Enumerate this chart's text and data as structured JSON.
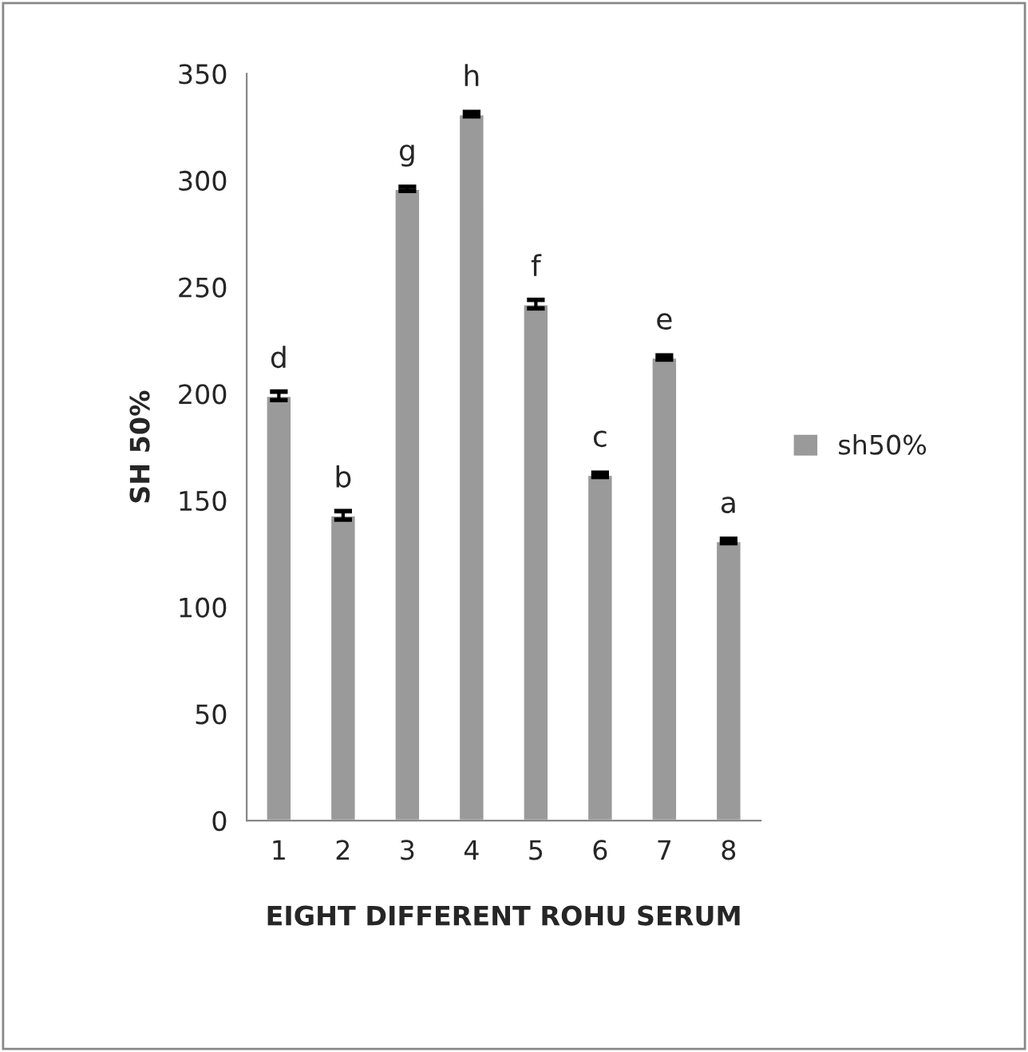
{
  "chart_data": {
    "type": "bar",
    "xlabel": "EIGHT DIFFERENT ROHU SERUM",
    "ylabel": "SH 50%",
    "categories": [
      "1",
      "2",
      "3",
      "4",
      "5",
      "6",
      "7",
      "8"
    ],
    "series": [
      {
        "name": "sh50%",
        "color": "#9a9a9a",
        "values": [
          199,
          143,
          296,
          331,
          242,
          162,
          217,
          131
        ],
        "errors": [
          2,
          2,
          1,
          1,
          2,
          1,
          1,
          1
        ]
      }
    ],
    "ylim": [
      0,
      350
    ],
    "yticks": [
      0,
      50,
      100,
      150,
      200,
      250,
      300,
      350
    ],
    "grid": false,
    "legend": "right",
    "annotations": [
      {
        "text": "d",
        "x": "1",
        "y": 199
      },
      {
        "text": "b",
        "x": "2",
        "y": 143
      },
      {
        "text": "g",
        "x": "3",
        "y": 296
      },
      {
        "text": "h",
        "x": "4",
        "y": 331
      },
      {
        "text": "f",
        "x": "5",
        "y": 242
      },
      {
        "text": "c",
        "x": "6",
        "y": 162
      },
      {
        "text": "e",
        "x": "7",
        "y": 217
      },
      {
        "text": "a",
        "x": "8",
        "y": 131
      }
    ]
  }
}
